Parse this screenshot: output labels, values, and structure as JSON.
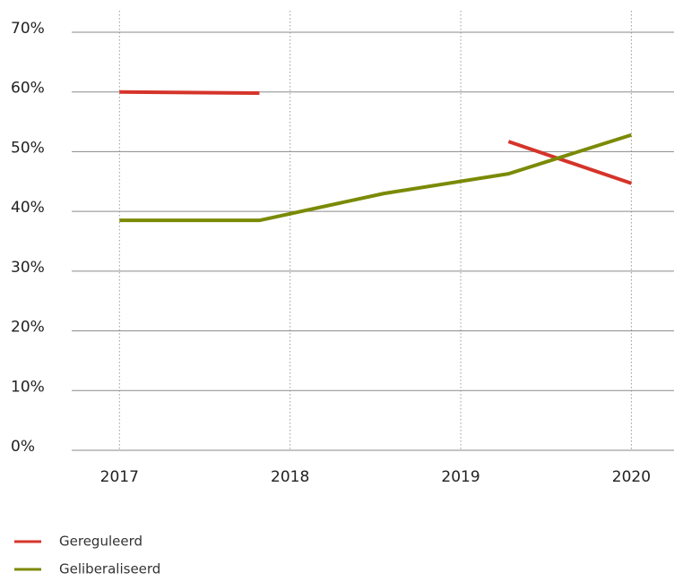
{
  "chart_data": {
    "type": "line",
    "x": [
      2017,
      2017.82,
      2018.55,
      2019.28,
      2020
    ],
    "series": [
      {
        "name": "Gereguleerd",
        "color": "#d5342a",
        "values": [
          60.0,
          59.8,
          null,
          51.7,
          44.7
        ]
      },
      {
        "name": "Geliberaliseerd",
        "color": "#7b8a06",
        "values": [
          38.5,
          38.5,
          43.0,
          46.3,
          52.8
        ]
      }
    ],
    "xlim": [
      2016.72,
      2020.25
    ],
    "xticks": [
      2017,
      2018,
      2019,
      2020
    ],
    "ylim": [
      0,
      70
    ],
    "yticks": [
      {
        "value": 0,
        "label": "0%"
      },
      {
        "value": 10,
        "label": "10%"
      },
      {
        "value": 20,
        "label": "20%"
      },
      {
        "value": 30,
        "label": "30%"
      },
      {
        "value": 40,
        "label": "40%"
      },
      {
        "value": 50,
        "label": "50%"
      },
      {
        "value": 60,
        "label": "60%"
      },
      {
        "value": 70,
        "label": "70%"
      }
    ],
    "grid": true
  }
}
